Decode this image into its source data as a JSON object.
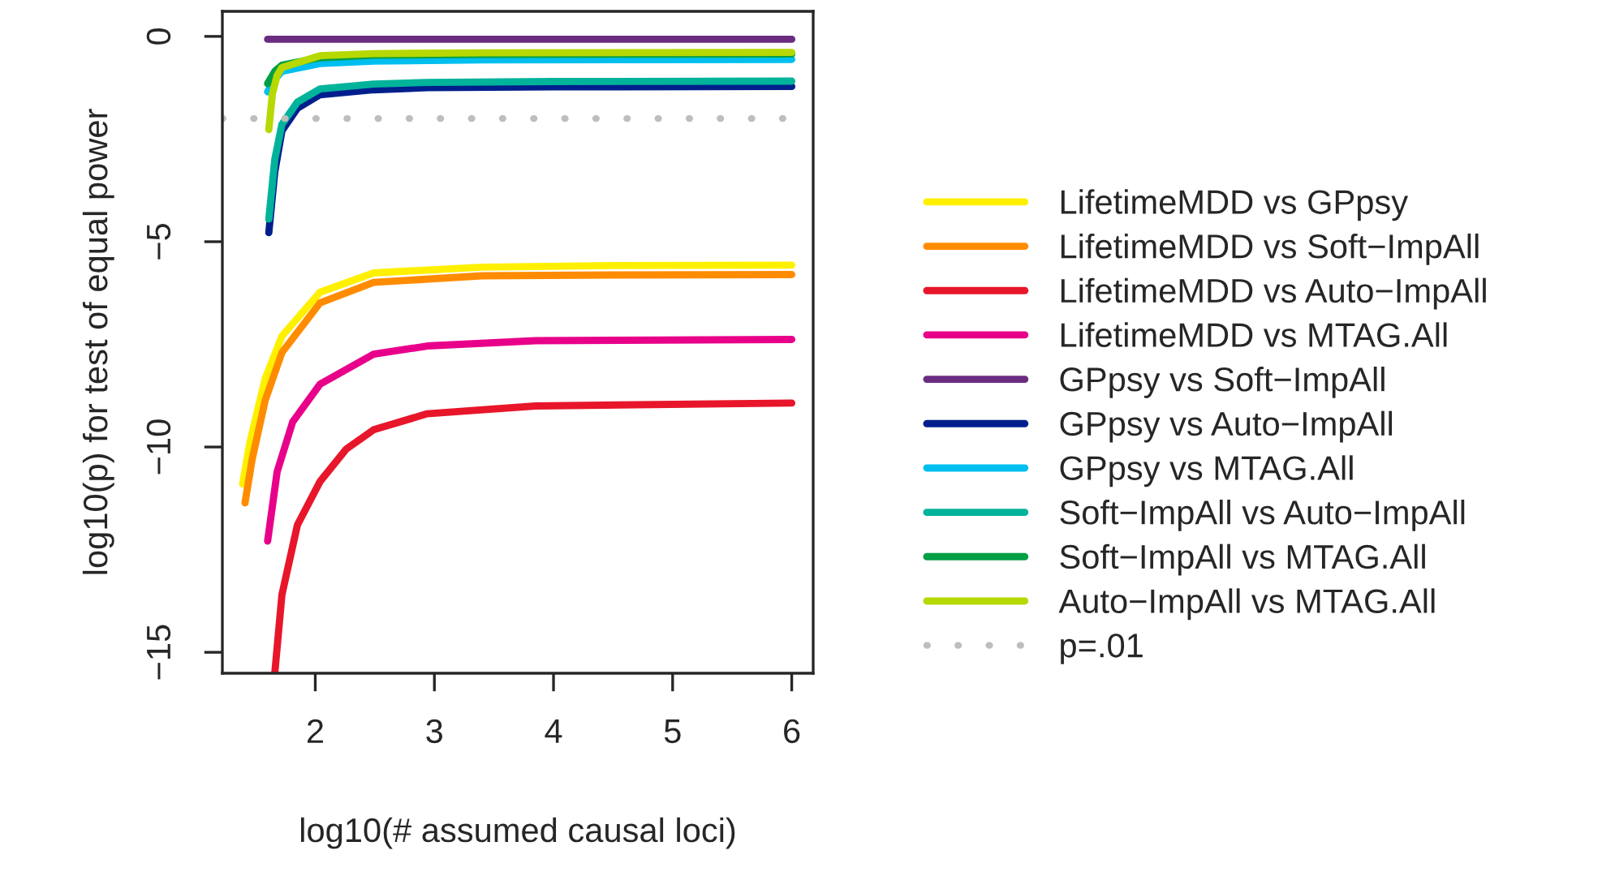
{
  "chart_data": {
    "type": "line",
    "xlabel": "log10(# assumed causal loci)",
    "ylabel": "log10(p) for test of equal power",
    "xlim": [
      1.22,
      6.18
    ],
    "ylim": [
      -15.51,
      0.61
    ],
    "xticks": [
      2,
      3,
      4,
      5,
      6
    ],
    "yticks": [
      0,
      -5,
      -10,
      -15
    ],
    "grid": false,
    "legend": "right",
    "line_style": "solid",
    "marker": "none",
    "series": [
      {
        "name": "LifetimeMDD vs GPpsy",
        "color": "#fff000",
        "x": [
          1.39,
          1.45,
          1.58,
          1.72,
          2.04,
          2.49,
          3.4,
          4.5,
          6.0
        ],
        "values": [
          -10.9,
          -9.9,
          -8.33,
          -7.3,
          -6.23,
          -5.76,
          -5.62,
          -5.58,
          -5.57
        ]
      },
      {
        "name": "LifetimeMDD vs Soft−ImpAll",
        "color": "#ff8c00",
        "x": [
          1.41,
          1.47,
          1.58,
          1.72,
          2.04,
          2.49,
          3.4,
          4.5,
          6.0
        ],
        "values": [
          -11.36,
          -10.3,
          -8.86,
          -7.7,
          -6.49,
          -5.99,
          -5.83,
          -5.81,
          -5.8
        ]
      },
      {
        "name": "LifetimeMDD vs Auto−ImpAll",
        "color": "#e8162b",
        "x": [
          1.66,
          1.72,
          1.85,
          2.04,
          2.26,
          2.49,
          2.94,
          3.85,
          6.0
        ],
        "values": [
          -15.51,
          -13.6,
          -11.9,
          -10.84,
          -10.05,
          -9.58,
          -9.19,
          -9.0,
          -8.93
        ]
      },
      {
        "name": "LifetimeMDD vs MTAG.All",
        "color": "#e8008a",
        "x": [
          1.6,
          1.68,
          1.81,
          2.04,
          2.49,
          2.94,
          3.85,
          6.0
        ],
        "values": [
          -12.29,
          -10.6,
          -9.39,
          -8.47,
          -7.74,
          -7.54,
          -7.41,
          -7.38
        ]
      },
      {
        "name": "GPpsy vs Soft−ImpAll",
        "color": "#6a2c80",
        "x": [
          1.6,
          6.0
        ],
        "values": [
          -0.07,
          -0.07
        ]
      },
      {
        "name": "GPpsy vs Auto−ImpAll",
        "color": "#001f8c",
        "x": [
          1.61,
          1.66,
          1.72,
          1.85,
          2.04,
          2.49,
          2.94,
          4.0,
          6.0
        ],
        "values": [
          -4.78,
          -3.3,
          -2.3,
          -1.75,
          -1.42,
          -1.3,
          -1.25,
          -1.23,
          -1.22
        ]
      },
      {
        "name": "GPpsy vs MTAG.All",
        "color": "#00bfef",
        "x": [
          1.6,
          1.66,
          1.72,
          2.04,
          2.49,
          3.4,
          6.0
        ],
        "values": [
          -1.35,
          -1.05,
          -0.85,
          -0.66,
          -0.6,
          -0.57,
          -0.56
        ]
      },
      {
        "name": "Soft−ImpAll vs Auto−ImpAll",
        "color": "#00b39a",
        "x": [
          1.61,
          1.66,
          1.72,
          1.85,
          2.04,
          2.49,
          2.94,
          4.0,
          6.0
        ],
        "values": [
          -4.45,
          -3.0,
          -2.14,
          -1.6,
          -1.28,
          -1.16,
          -1.12,
          -1.1,
          -1.09
        ]
      },
      {
        "name": "Soft−ImpAll vs MTAG.All",
        "color": "#009f45",
        "x": [
          1.6,
          1.66,
          1.72,
          2.04,
          2.49,
          3.4,
          6.0
        ],
        "values": [
          -1.15,
          -0.85,
          -0.7,
          -0.52,
          -0.46,
          -0.44,
          -0.43
        ]
      },
      {
        "name": "Auto−ImpAll vs MTAG.All",
        "color": "#b7d800",
        "x": [
          1.61,
          1.64,
          1.68,
          1.72,
          2.04,
          2.49,
          3.4,
          6.0
        ],
        "values": [
          -2.27,
          -1.4,
          -0.95,
          -0.76,
          -0.47,
          -0.42,
          -0.4,
          -0.39
        ]
      }
    ],
    "ref_lines": [
      {
        "axis": "y",
        "value": -2,
        "label": "p=.01",
        "color": "#bebebe",
        "line_style": "dotted"
      }
    ]
  }
}
